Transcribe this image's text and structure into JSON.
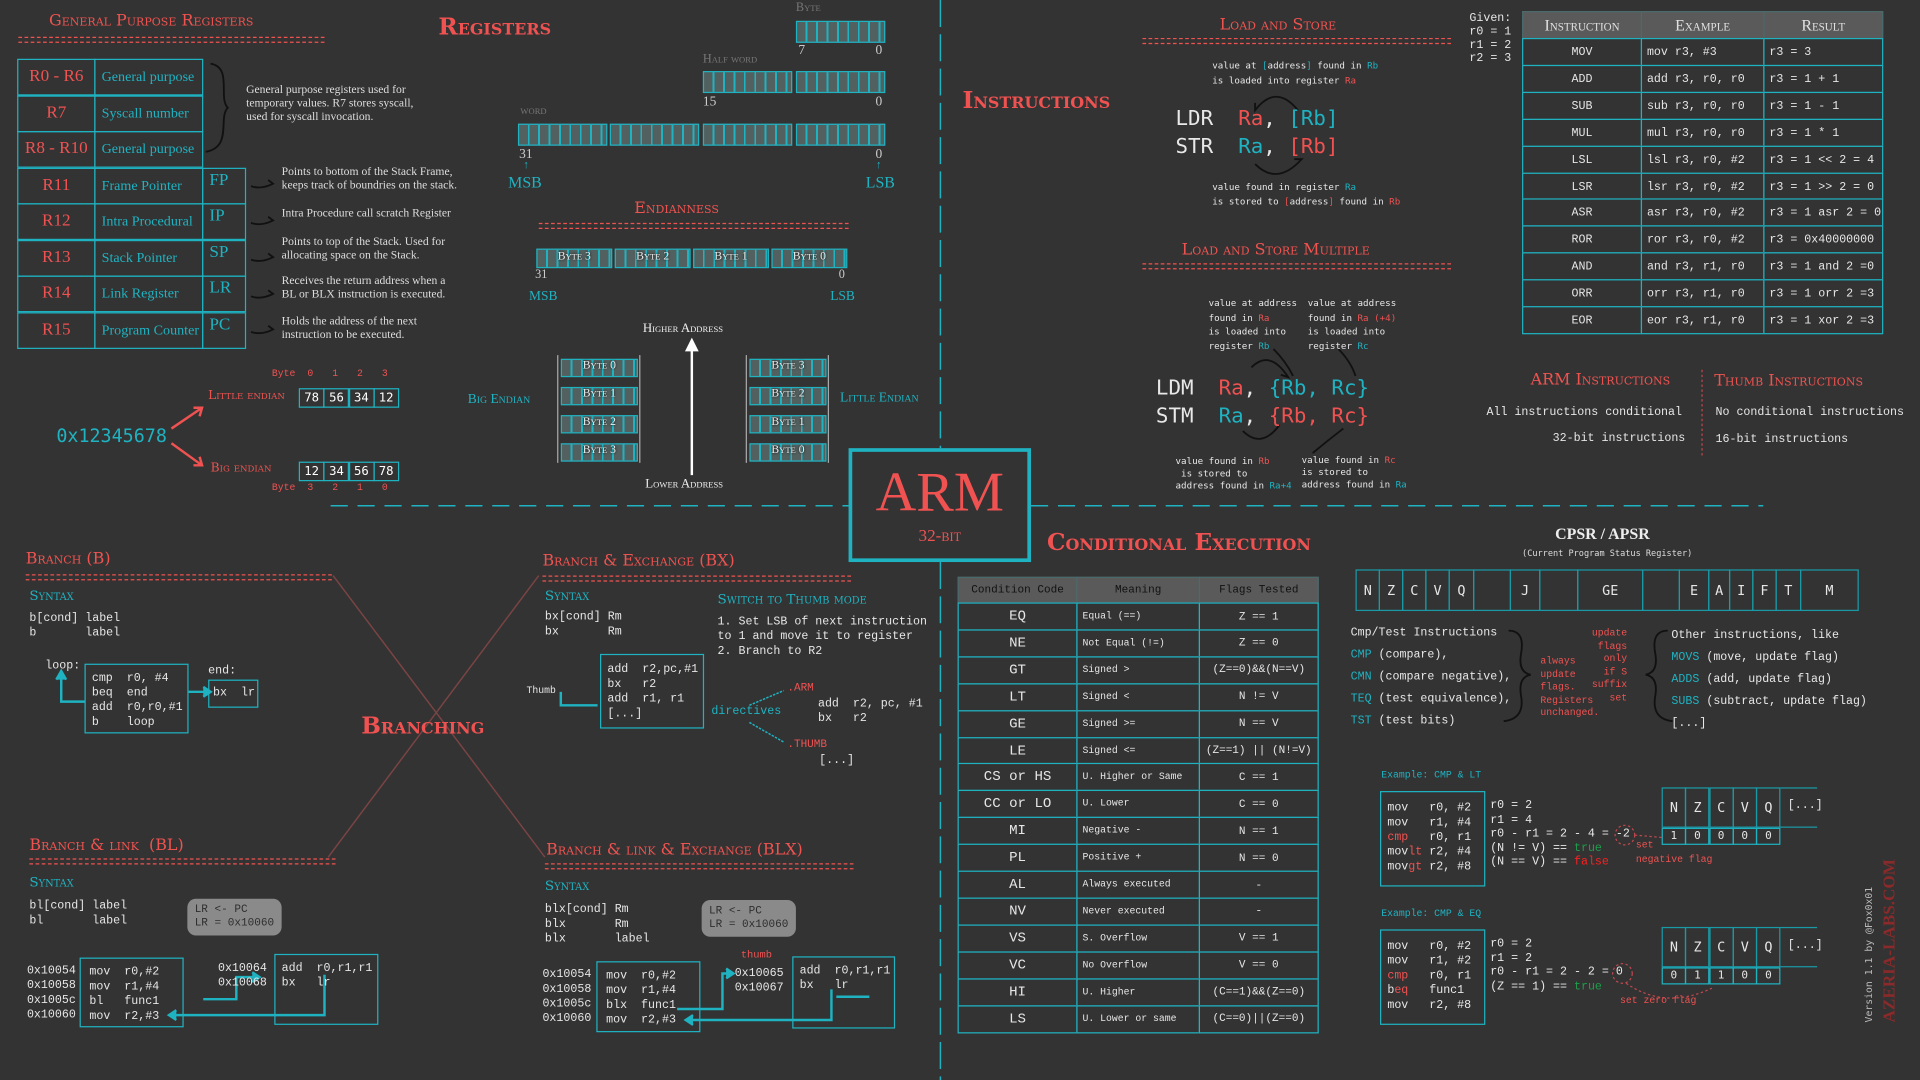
{
  "registers": {
    "section_title": "General Purpose Registers",
    "main_title": "Registers",
    "rows": [
      {
        "reg": "R0 - R6",
        "name": "General purpose",
        "alias": ""
      },
      {
        "reg": "R7",
        "name": "Syscall number",
        "alias": ""
      },
      {
        "reg": "R8 - R10",
        "name": "General purpose",
        "alias": ""
      },
      {
        "reg": "R11",
        "name": "Frame Pointer",
        "alias": "FP"
      },
      {
        "reg": "R12",
        "name": "Intra Procedural",
        "alias": "IP"
      },
      {
        "reg": "R13",
        "name": "Stack Pointer",
        "alias": "SP"
      },
      {
        "reg": "R14",
        "name": "Link Register",
        "alias": "LR"
      },
      {
        "reg": "R15",
        "name": "Program Counter",
        "alias": "PC"
      }
    ],
    "gp_note": "General purpose registers used for\ntemporary values. R7 stores syscall,\nused for syscall invocation.",
    "notes": [
      "Points to bottom of the Stack Frame,\nkeeps track of boundries on the stack.",
      "Intra Procedure call scratch Register",
      "Points to top of the Stack. Used for\nallocating space on the Stack.",
      "Receives the return address when a\nBL or BLX instruction is executed.",
      "Holds the address of the next\ninstruction to be executed."
    ]
  },
  "sizes": {
    "byte": "Byte",
    "byte_hi": "7",
    "byte_lo": "0",
    "half": "Half word",
    "half_hi": "15",
    "half_lo": "0",
    "word": "word",
    "word_hi": "31",
    "word_lo": "0",
    "msb": "MSB",
    "lsb": "LSB"
  },
  "endianness": {
    "title": "Endianness",
    "bytes": [
      "Byte 3",
      "Byte 2",
      "Byte 1",
      "Byte 0"
    ],
    "hi": "31",
    "lo": "0",
    "msb": "MSB",
    "lsb": "LSB",
    "higher": "Higher Address",
    "lower": "Lower Address",
    "big_label": "Big Endian",
    "little_label": "Little Endian",
    "big_stack": [
      "Byte 0",
      "Byte 1",
      "Byte 2",
      "Byte 3"
    ],
    "little_stack": [
      "Byte 3",
      "Byte 2",
      "Byte 1",
      "Byte 0"
    ],
    "value": "0x12345678",
    "le_label": "Little endian",
    "be_label": "Big endian",
    "byte_word": "Byte",
    "le_idx": [
      "0",
      "1",
      "2",
      "3"
    ],
    "le_vals": [
      "78",
      "56",
      "34",
      "12"
    ],
    "be_idx": [
      "3",
      "2",
      "1",
      "0"
    ],
    "be_vals": [
      "12",
      "34",
      "56",
      "78"
    ]
  },
  "logo": {
    "title": "ARM",
    "subtitle": "32-bit"
  },
  "instructions": {
    "title": "Instructions",
    "ls_title": "Load and Store",
    "ls_top": [
      [
        [
          "value at ",
          "w"
        ],
        [
          "[",
          "c"
        ],
        [
          "address",
          "w"
        ],
        [
          "]",
          "c"
        ],
        [
          " found in ",
          "w"
        ],
        [
          "Rb",
          "c"
        ]
      ],
      [
        [
          "is loaded into register ",
          "w"
        ],
        [
          "Ra",
          "r"
        ]
      ]
    ],
    "ldr": [
      [
        "LDR  ",
        "w"
      ],
      [
        "Ra",
        "r"
      ],
      [
        ", ",
        "w"
      ],
      [
        "[Rb]",
        "c"
      ]
    ],
    "str": [
      [
        "STR  ",
        "w"
      ],
      [
        "Ra",
        "c"
      ],
      [
        ", ",
        "w"
      ],
      [
        "[Rb]",
        "r"
      ]
    ],
    "ls_bottom": [
      [
        [
          "value found in register ",
          "w"
        ],
        [
          "Ra",
          "c"
        ]
      ],
      [
        [
          "is stored to ",
          "w"
        ],
        [
          "[",
          "r"
        ],
        [
          "address",
          "w"
        ],
        [
          "]",
          "r"
        ],
        [
          " found in ",
          "w"
        ],
        [
          "Rb",
          "r"
        ]
      ]
    ],
    "lsm_title": "Load and Store Multiple",
    "lsm_top_left": [
      [
        [
          "value at address",
          "w"
        ]
      ],
      [
        [
          "found in ",
          "w"
        ],
        [
          "Ra",
          "r"
        ]
      ],
      [
        [
          "is loaded into",
          "w"
        ]
      ],
      [
        [
          "register ",
          "w"
        ],
        [
          "Rb",
          "c"
        ]
      ]
    ],
    "lsm_top_right": [
      [
        [
          "value at address",
          "w"
        ]
      ],
      [
        [
          "found in ",
          "w"
        ],
        [
          "Ra (+4)",
          "r"
        ]
      ],
      [
        [
          "is loaded into",
          "w"
        ]
      ],
      [
        [
          "register ",
          "w"
        ],
        [
          "Rc",
          "c"
        ]
      ]
    ],
    "ldm": [
      [
        "LDM  ",
        "w"
      ],
      [
        "Ra",
        "r"
      ],
      [
        ", ",
        "w"
      ],
      [
        "{Rb, Rc}",
        "c"
      ]
    ],
    "stm": [
      [
        "STM  ",
        "w"
      ],
      [
        "Ra",
        "c"
      ],
      [
        ", ",
        "w"
      ],
      [
        "{Rb, Rc}",
        "r"
      ]
    ],
    "lsm_bottom_left": [
      [
        [
          "value found in ",
          "w"
        ],
        [
          "Rb",
          "r"
        ]
      ],
      [
        [
          " is stored to",
          "w"
        ]
      ],
      [
        [
          "address found in ",
          "w"
        ],
        [
          "Ra+4",
          "c"
        ]
      ]
    ],
    "lsm_bottom_right": [
      [
        [
          "value found in ",
          "w"
        ],
        [
          "Rc",
          "r"
        ]
      ],
      [
        [
          "is stored to",
          "w"
        ]
      ],
      [
        [
          "address found in ",
          "w"
        ],
        [
          "Ra",
          "c"
        ]
      ]
    ],
    "given": "Given:\nr0 = 1\nr1 = 2\nr2 = 3",
    "table_headers": [
      "Instruction",
      "Example",
      "Result"
    ],
    "table_rows": [
      [
        "MOV",
        "mov r3, #3",
        "r3 = 3"
      ],
      [
        "ADD",
        "add r3, r0, r0",
        "r3 = 1 + 1"
      ],
      [
        "SUB",
        "sub r3, r0, r0",
        "r3 = 1 - 1"
      ],
      [
        "MUL",
        "mul r3, r0, r0",
        "r3 = 1 * 1"
      ],
      [
        "LSL",
        "lsl r3, r0, #2",
        "r3 = 1 << 2 = 4"
      ],
      [
        "LSR",
        "lsr r3, r0, #2",
        "r3 = 1 >> 2 = 0"
      ],
      [
        "ASR",
        "asr r3, r0, #2",
        "r3 = 1 asr 2 = 0"
      ],
      [
        "ROR",
        "ror r3, r0, #2",
        "r3 = 0x40000000"
      ],
      [
        "AND",
        "and r3, r1, r0",
        "r3 = 1 and 2 =0"
      ],
      [
        "ORR",
        "orr r3, r1, r0",
        "r3 = 1 orr 2 =3"
      ],
      [
        "EOR",
        "eor r3, r1, r0",
        "r3 = 1 xor 2 =3"
      ]
    ],
    "arm_title": "ARM Instructions",
    "arm_1": "All instructions conditional",
    "arm_2": "32-bit instructions",
    "thumb_title": "Thumb Instructions",
    "thumb_1": "No conditional instructions",
    "thumb_2": "16-bit instructions"
  },
  "conditional": {
    "title": "Conditional Execution",
    "headers": [
      "Condition Code",
      "Meaning",
      "Flags Tested"
    ],
    "rows": [
      [
        "EQ",
        "Equal (==)",
        "Z == 1"
      ],
      [
        "NE",
        "Not Equal (!=)",
        "Z == 0"
      ],
      [
        "GT",
        "Signed >",
        "(Z==0)&&(N==V)"
      ],
      [
        "LT",
        "Signed <",
        "N != V"
      ],
      [
        "GE",
        "Signed >=",
        "N == V"
      ],
      [
        "LE",
        "Signed <=",
        "(Z==1) || (N!=V)"
      ],
      [
        "CS or HS",
        "U. Higher or Same",
        "C == 1"
      ],
      [
        "CC or LO",
        "U. Lower",
        "C == 0"
      ],
      [
        "MI",
        "Negative -",
        "N == 1"
      ],
      [
        "PL",
        "Positive +",
        "N == 0"
      ],
      [
        "AL",
        "Always executed",
        "-"
      ],
      [
        "NV",
        "Never executed",
        "-"
      ],
      [
        "VS",
        "S. Overflow",
        "V == 1"
      ],
      [
        "VC",
        "No Overflow",
        "V == 0"
      ],
      [
        "HI",
        "U. Higher",
        "(C==1)&&(Z==0)"
      ],
      [
        "LS",
        "U. Lower or same",
        "(C==0)||(Z==0)"
      ]
    ],
    "cpsr_title": "CPSR / APSR",
    "cpsr_sub": "(Current Program Status Register)",
    "cpsr_bits": [
      "N",
      "Z",
      "C",
      "V",
      "Q",
      "",
      "J",
      "",
      "GE",
      "",
      "E",
      "A",
      "I",
      "F",
      "T",
      "M"
    ],
    "cmp_lines": [
      [
        [
          "Cmp/Test Instructions",
          "w"
        ]
      ],
      [
        [
          "CMP",
          "c"
        ],
        [
          " (compare),",
          "w"
        ]
      ],
      [
        [
          "CMN",
          "c"
        ],
        [
          " (compare negative),",
          "w"
        ]
      ],
      [
        [
          "TEQ",
          "c"
        ],
        [
          " (test equivalence),",
          "w"
        ]
      ],
      [
        [
          "TST",
          "c"
        ],
        [
          " (test bits)",
          "w"
        ]
      ]
    ],
    "always_note": "always\nupdate\nflags.\nRegisters\nunchanged.",
    "s_note": "update\nflags\nonly\nif S\nsuffix\nset",
    "other_lines": [
      [
        [
          "Other instructions, like",
          "w"
        ]
      ],
      [
        [
          "MOVS",
          "c"
        ],
        [
          " (move, update flag)",
          "w"
        ]
      ],
      [
        [
          "ADDS",
          "c"
        ],
        [
          " (add, update flag)",
          "w"
        ]
      ],
      [
        [
          "SUBS",
          "c"
        ],
        [
          " (subtract, update flag)",
          "w"
        ]
      ],
      [
        [
          "[...]",
          "w"
        ]
      ]
    ],
    "ex1_title": "Example: CMP & LT",
    "ex1_code": [
      [
        [
          "mov   r0, #2",
          "w"
        ]
      ],
      [
        [
          "mov   r1, #4",
          "w"
        ]
      ],
      [
        [
          "cmp",
          "r"
        ],
        [
          "   r0, r1",
          "w"
        ]
      ],
      [
        [
          "mov",
          "w"
        ],
        [
          "lt",
          "r"
        ],
        [
          " r2, #4",
          "w"
        ]
      ],
      [
        [
          "mov",
          "w"
        ],
        [
          "gt",
          "r"
        ],
        [
          " r2, #8",
          "w"
        ]
      ]
    ],
    "ex1_calc": [
      [
        [
          "r0 = 2",
          "w"
        ]
      ],
      [
        [
          "r1 = 4",
          "w"
        ]
      ],
      [
        [
          "r0 - r1 = 2 - 4 = -2",
          "w"
        ]
      ],
      [
        [
          "(N != V) == ",
          "w"
        ],
        [
          "true",
          "g"
        ]
      ],
      [
        [
          "(N == V) == ",
          "w"
        ],
        [
          "false",
          "rr"
        ]
      ]
    ],
    "ex1_flag_note": "set\nnegative flag",
    "ex1_flags": [
      "1",
      "0",
      "0",
      "0",
      "0"
    ],
    "ex2_title": "Example: CMP & EQ",
    "ex2_code": [
      [
        [
          "mov   r0, #2",
          "w"
        ]
      ],
      [
        [
          "mov   r1, #2",
          "w"
        ]
      ],
      [
        [
          "cmp",
          "r"
        ],
        [
          "   r0, r1",
          "w"
        ]
      ],
      [
        [
          "b",
          "w"
        ],
        [
          "eq",
          "r"
        ],
        [
          "   func1",
          "w"
        ]
      ],
      [
        [
          "mov   r2, #8",
          "w"
        ]
      ]
    ],
    "ex2_calc": [
      [
        [
          "r0 = 2",
          "w"
        ]
      ],
      [
        [
          "r1 = 2",
          "w"
        ]
      ],
      [
        [
          "r0 - r1 = 2 - 2 = 0",
          "w"
        ]
      ],
      [
        [
          "(Z == 1) == ",
          "w"
        ],
        [
          "true",
          "g"
        ]
      ]
    ],
    "ex2_flag_note": "set zero flag",
    "ex2_flags": [
      "0",
      "1",
      "1",
      "0",
      "0"
    ],
    "flag_names": [
      "N",
      "Z",
      "C",
      "V",
      "Q"
    ],
    "flag_more": "[...]"
  },
  "branching": {
    "title": "Branching",
    "syntax": "Syntax",
    "b_title": "Branch (B)",
    "b_syntax": "b[cond] label\nb       label",
    "b_loop": "loop:",
    "b_end": "end:",
    "b_code": "cmp  r0, #4\nbeq  end\nadd  r0,r0,#1\nb    loop",
    "b_end_code": "bx  lr",
    "bx_title": "Branch & Exchange (BX)",
    "bx_syntax": "bx[cond] Rm\nbx       Rm",
    "bx_thumb": "Thumb",
    "bx_code": "add  r2,pc,#1\nbx   r2\nadd  r1, r1\n[...]",
    "bx_switch_title": "Switch to Thumb mode",
    "bx_switch_steps": "1. Set LSB of next instruction\nto 1 and move it to register\n2. Branch to R2",
    "directives": "directives",
    "arm_dir": ".ARM",
    "arm_code": "add  r2, pc, #1\nbx   r2",
    "thumb_dir": ".THUMB",
    "thumb_code": "[...]",
    "bl_title": "Branch & link  (BL)",
    "bl_syntax": "bl[cond] label\nbl       label",
    "bl_bubble": "LR <- PC\nLR = 0x10060",
    "bl_addrs": "0x10054\n0x10058\n0x1005c\n0x10060",
    "bl_code": "mov  r0,#2\nmov  r1,#4\nbl   func1\nmov  r2,#3",
    "bl_faddrs": "0x10064\n0x10068",
    "bl_fcode": "add  r0,r1,r1\nbx   lr",
    "blx_title": "Branch & link & Exchange (BLX)",
    "blx_syntax": "blx[cond] Rm\nblx       Rm\nblx       label",
    "blx_bubble": "LR <- PC\nLR = 0x10060",
    "blx_thumb": "thumb",
    "blx_addrs": "0x10054\n0x10058\n0x1005c\n0x10060",
    "blx_code": "mov  r0,#2\nmov  r1,#4\nblx  func1\nmov  r2,#3",
    "blx_faddrs": "0x10065\n0x10067",
    "blx_fcode": "add  r0,r1,r1\nbx   lr"
  },
  "footer": {
    "version": "Version 1.1 by @Fox0x01",
    "brand": "AZERIA-LABS.COM"
  },
  "colors": {
    "background": "#333333",
    "accent_red": "#f05252",
    "accent_cyan": "#1fb3c2"
  }
}
